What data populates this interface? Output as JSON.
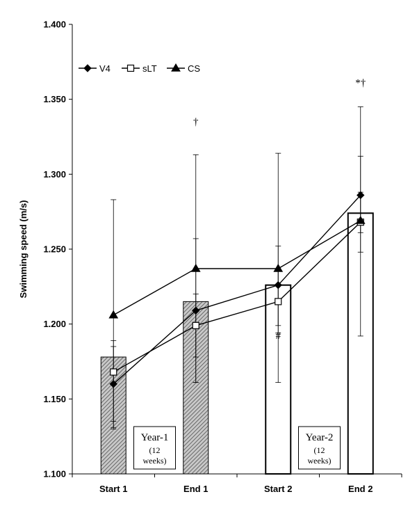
{
  "chart_data": {
    "type": "bar",
    "title": "",
    "xlabel": "",
    "ylabel": "Swimming speed (m/s)",
    "ylim": [
      1.1,
      1.4
    ],
    "yticks": [
      "1.100",
      "1.150",
      "1.200",
      "1.250",
      "1.300",
      "1.350",
      "1.400"
    ],
    "categories": [
      "Start 1",
      "End 1",
      "Start 2",
      "End 2"
    ],
    "bars": {
      "values": [
        1.178,
        1.215,
        1.226,
        1.274
      ],
      "styles": [
        "hatched",
        "hatched",
        "open",
        "open"
      ]
    },
    "series": [
      {
        "name": "V4",
        "marker": "diamond",
        "values": [
          1.16,
          1.209,
          1.226,
          1.286
        ],
        "err_low": [
          1.131,
          1.161,
          1.199,
          1.261
        ],
        "err_high": [
          1.189,
          1.257,
          1.252,
          1.312
        ]
      },
      {
        "name": "sLT",
        "marker": "square-open",
        "values": [
          1.168,
          1.199,
          1.215,
          1.268
        ],
        "err_low": [
          1.135,
          1.178,
          1.194,
          1.248
        ],
        "err_high": [
          1.185,
          1.22,
          1.236,
          1.288
        ]
      },
      {
        "name": "CS",
        "marker": "triangle",
        "values": [
          1.206,
          1.237,
          1.237,
          1.269
        ],
        "err_low": [
          1.13,
          1.161,
          1.161,
          1.192
        ],
        "err_high": [
          1.283,
          1.313,
          1.314,
          1.345
        ]
      }
    ],
    "legend": {
      "placement": "top-left",
      "entries": [
        "V4",
        "sLT",
        "CS"
      ]
    },
    "annotations": [
      {
        "text": "†",
        "category": "End 1",
        "y": 1.333
      },
      {
        "text": "*†",
        "category": "End 2",
        "y": 1.359
      },
      {
        "text": "#",
        "category": "Start 2",
        "y": 1.19
      }
    ],
    "boxes": [
      {
        "line1": "Year-1",
        "line2": "(12",
        "line3": "weeks)",
        "between": [
          "Start 1",
          "End 1"
        ]
      },
      {
        "line1": "Year-2",
        "line2": "(12",
        "line3": "weeks)",
        "between": [
          "Start 2",
          "End 2"
        ]
      }
    ],
    "grid": false,
    "colors": {
      "bar_fill_hatched": "#9a9a9a",
      "line": "#000000",
      "bar_stroke": "#000000",
      "background": "#ffffff"
    }
  }
}
